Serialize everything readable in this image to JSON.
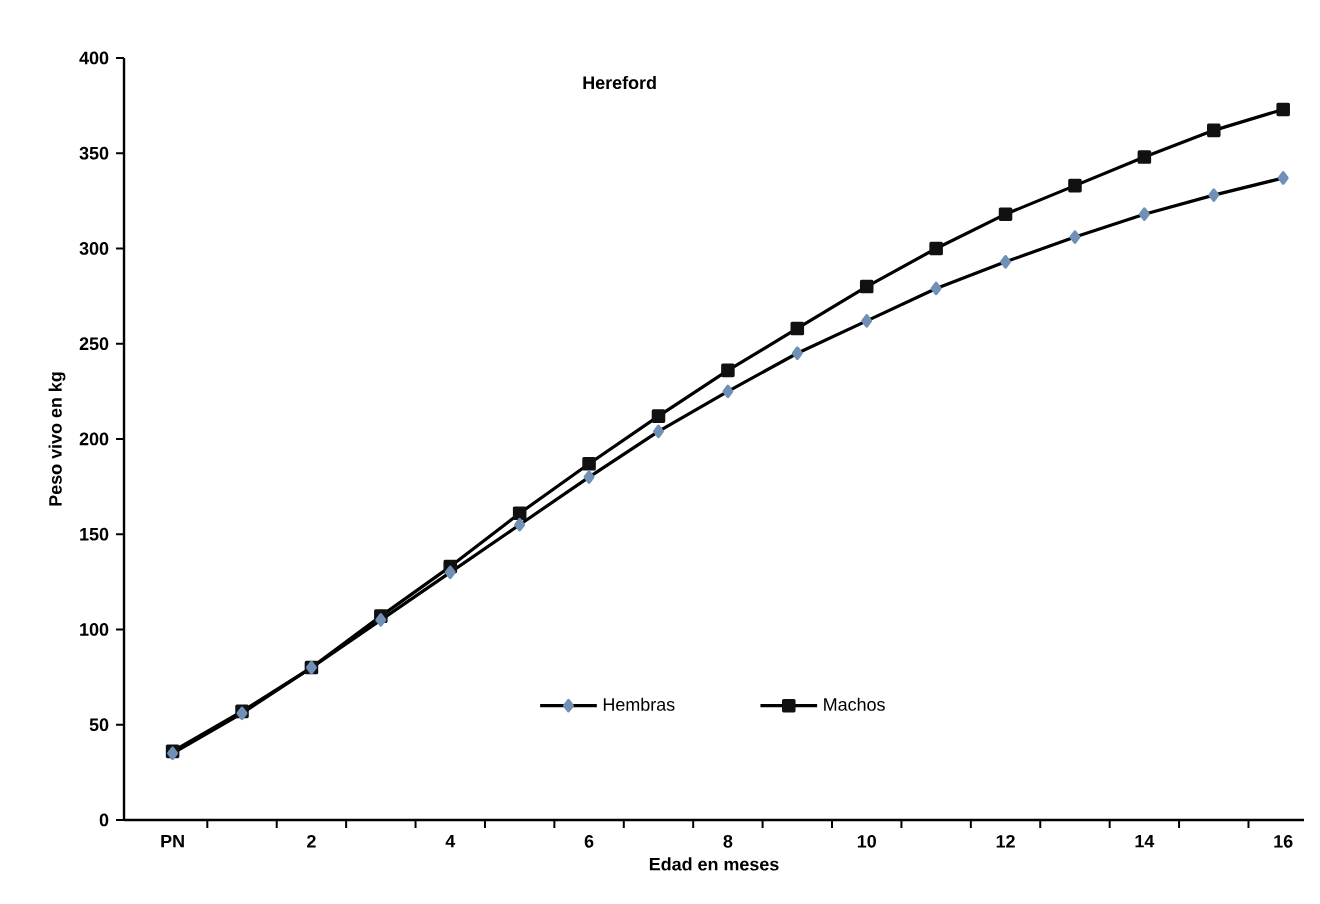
{
  "chart_data": {
    "type": "line",
    "title": "Hereford",
    "xlabel": "Edad en meses",
    "ylabel": "Peso vivo en kg",
    "categories": [
      "PN",
      null,
      "2",
      null,
      "4",
      null,
      "6",
      null,
      "8",
      null,
      "10",
      null,
      "12",
      null,
      "14",
      null,
      "16"
    ],
    "series": [
      {
        "name": "Hembras",
        "color": "#7090b8",
        "marker": "diamond",
        "values": [
          35,
          56,
          80,
          105,
          130,
          155,
          180,
          204,
          225,
          245,
          262,
          279,
          293,
          306,
          318,
          328,
          337
        ]
      },
      {
        "name": "Machos",
        "color": "#111111",
        "marker": "square",
        "values": [
          36,
          57,
          80,
          107,
          133,
          161,
          187,
          212,
          236,
          258,
          280,
          300,
          318,
          333,
          348,
          362,
          373
        ]
      }
    ],
    "ylim": [
      0,
      400
    ],
    "yticks": [
      0,
      50,
      100,
      150,
      200,
      250,
      300,
      350,
      400
    ],
    "legend": "bottom",
    "grid": false,
    "line_style": "solid"
  }
}
